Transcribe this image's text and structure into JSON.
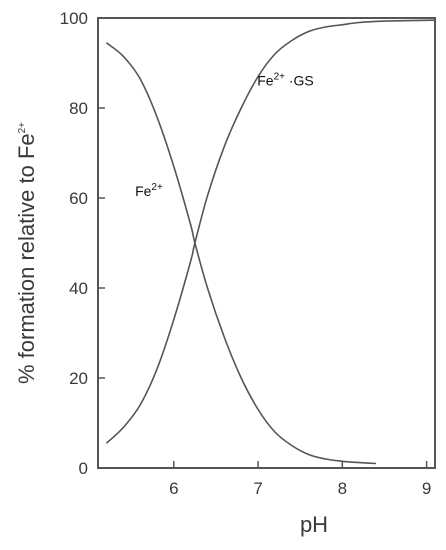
{
  "chart_data": {
    "type": "line",
    "xlabel": "pH",
    "ylabel": {
      "main": "% formation relative to  Fe",
      "superscript": "2+"
    },
    "xlim": [
      5.1,
      9.1
    ],
    "ylim": [
      0,
      100
    ],
    "xticks": [
      6,
      7,
      8,
      9
    ],
    "yticks": [
      0,
      20,
      40,
      60,
      80,
      100
    ],
    "grid": false,
    "legend": "none",
    "series": [
      {
        "x": [
          5.2,
          5.4,
          5.6,
          5.8,
          6.0,
          6.2,
          6.25,
          6.4,
          6.6,
          6.8,
          7.0,
          7.2,
          7.4,
          7.6,
          7.8,
          8.0,
          8.2,
          8.4
        ],
        "y": [
          94.5,
          91.5,
          86.5,
          78.0,
          67.0,
          54.0,
          50.0,
          40.0,
          29.0,
          20.0,
          13.0,
          8.0,
          5.0,
          3.0,
          2.0,
          1.5,
          1.2,
          1.0
        ]
      },
      {
        "x": [
          5.2,
          5.4,
          5.6,
          5.8,
          6.0,
          6.2,
          6.25,
          6.4,
          6.6,
          6.8,
          7.0,
          7.2,
          7.4,
          7.6,
          7.8,
          8.0,
          8.2,
          8.5,
          9.0,
          9.1
        ],
        "y": [
          5.5,
          9.0,
          14.0,
          22.0,
          33.0,
          46.0,
          50.0,
          60.5,
          71.5,
          80.0,
          87.0,
          92.0,
          95.0,
          97.0,
          98.0,
          98.5,
          99.0,
          99.3,
          99.5,
          99.5
        ]
      }
    ],
    "annotations": [
      {
        "text": "Fe",
        "sup": "2+",
        "suffix": "",
        "x": 5.54,
        "y": 60.5
      },
      {
        "text": "Fe",
        "sup": "2+",
        "suffix": " ·GS",
        "x": 6.99,
        "y": 85
      }
    ]
  }
}
